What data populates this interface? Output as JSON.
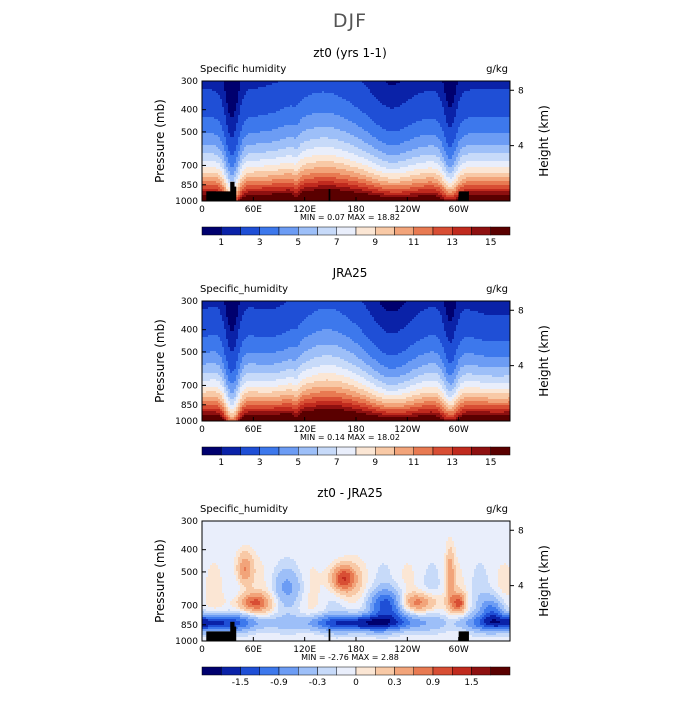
{
  "figure": {
    "title": "DJF"
  },
  "chart_data": [
    {
      "type": "heatmap",
      "title": "zt0 (yrs 1-1)",
      "subtitle_left": "Specific humidity",
      "units": "g/kg",
      "ylabel": "Pressure (mb)",
      "ylabel_right": "Height (km)",
      "x_ticks": [
        "0",
        "60E",
        "120E",
        "180",
        "120W",
        "60W"
      ],
      "x_tick_values": [
        0,
        60,
        120,
        180,
        240,
        300
      ],
      "xlim": [
        0,
        360
      ],
      "y_ticks": [
        300,
        400,
        500,
        700,
        850,
        1000
      ],
      "ylim": [
        1000,
        300
      ],
      "y_right_ticks": [
        8,
        4
      ],
      "min_max_text": "MIN =    0.07   MAX =   18.82",
      "colorbar": {
        "labels": [
          "1",
          "3",
          "5",
          "7",
          "9",
          "11",
          "13",
          "15"
        ],
        "colors": [
          "#00006e",
          "#0a22a8",
          "#1f4fd6",
          "#3d78ec",
          "#6c9cf4",
          "#9dbff8",
          "#c7daf9",
          "#e9eefb",
          "#fbe6d4",
          "#f8c9a6",
          "#f2a47a",
          "#e87a52",
          "#d84e34",
          "#c02a1e",
          "#8e1010",
          "#5a0000"
        ]
      },
      "field": "humidity",
      "has_topography": true
    },
    {
      "type": "heatmap",
      "title": "JRA25",
      "subtitle_left": "Specific_humidity",
      "units": "g/kg",
      "ylabel": "Pressure (mb)",
      "ylabel_right": "Height (km)",
      "x_ticks": [
        "0",
        "60E",
        "120E",
        "180",
        "120W",
        "60W"
      ],
      "x_tick_values": [
        0,
        60,
        120,
        180,
        240,
        300
      ],
      "xlim": [
        0,
        360
      ],
      "y_ticks": [
        300,
        400,
        500,
        700,
        850,
        1000
      ],
      "ylim": [
        1000,
        300
      ],
      "y_right_ticks": [
        8,
        4
      ],
      "min_max_text": "MIN =    0.14   MAX =   18.02",
      "colorbar": {
        "labels": [
          "1",
          "3",
          "5",
          "7",
          "9",
          "11",
          "13",
          "15"
        ],
        "colors": [
          "#00006e",
          "#0a22a8",
          "#1f4fd6",
          "#3d78ec",
          "#6c9cf4",
          "#9dbff8",
          "#c7daf9",
          "#e9eefb",
          "#fbe6d4",
          "#f8c9a6",
          "#f2a47a",
          "#e87a52",
          "#d84e34",
          "#c02a1e",
          "#8e1010",
          "#5a0000"
        ]
      },
      "field": "humidity",
      "has_topography": false
    },
    {
      "type": "heatmap",
      "title": "zt0 - JRA25",
      "subtitle_left": "Specific_humidity",
      "units": "g/kg",
      "ylabel": "Pressure (mb)",
      "ylabel_right": "Height (km)",
      "x_ticks": [
        "0",
        "60E",
        "120E",
        "180",
        "120W",
        "60W"
      ],
      "x_tick_values": [
        0,
        60,
        120,
        180,
        240,
        300
      ],
      "xlim": [
        0,
        360
      ],
      "y_ticks": [
        300,
        400,
        500,
        700,
        850,
        1000
      ],
      "ylim": [
        1000,
        300
      ],
      "y_right_ticks": [
        8,
        4
      ],
      "min_max_text": "MIN =   -2.76   MAX =    2.88",
      "colorbar": {
        "labels": [
          "-1.5",
          "-0.9",
          "-0.3",
          "0",
          "0.3",
          "0.9",
          "1.5"
        ],
        "colors": [
          "#00006e",
          "#0a22a8",
          "#1f4fd6",
          "#3d78ec",
          "#6c9cf4",
          "#9dbff8",
          "#c7daf9",
          "#e9eefb",
          "#fbe6d4",
          "#f8c9a6",
          "#f2a47a",
          "#e87a52",
          "#d84e34",
          "#c02a1e",
          "#8e1010",
          "#5a0000"
        ]
      },
      "field": "difference",
      "has_topography": true
    }
  ]
}
